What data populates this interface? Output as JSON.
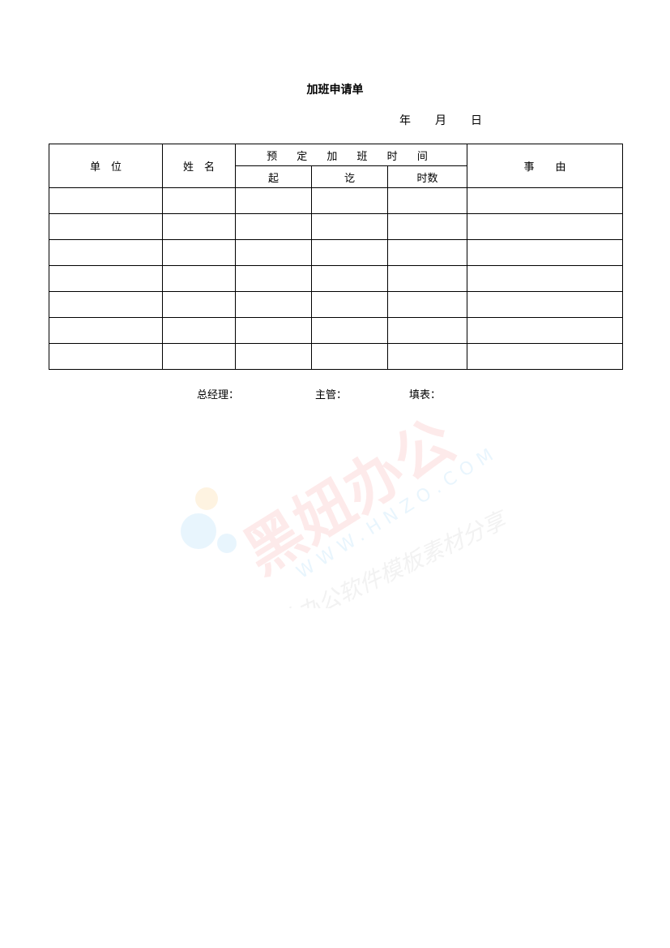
{
  "document": {
    "title": "加班申请单",
    "date": {
      "year": "年",
      "month": "月",
      "day": "日"
    },
    "table": {
      "headers": {
        "unit": "单　位",
        "name": "姓　名",
        "planned_time": "预 定 加 班 时 间",
        "start": "起",
        "end": "讫",
        "hours": "时数",
        "reason": "事　　由"
      },
      "rows": [
        [
          "",
          "",
          "",
          "",
          "",
          ""
        ],
        [
          "",
          "",
          "",
          "",
          "",
          ""
        ],
        [
          "",
          "",
          "",
          "",
          "",
          ""
        ],
        [
          "",
          "",
          "",
          "",
          "",
          ""
        ],
        [
          "",
          "",
          "",
          "",
          "",
          ""
        ],
        [
          "",
          "",
          "",
          "",
          "",
          ""
        ],
        [
          "",
          "",
          "",
          "",
          "",
          ""
        ]
      ]
    },
    "signatures": {
      "general_manager": "总经理：",
      "supervisor": "主管：",
      "filled_by": "填表："
    }
  },
  "watermark": {
    "brand": "黑妞办公",
    "url": "WWW.HNZO.COM",
    "slogan": "专业办公软件模板素材分享",
    "colors": {
      "red": "#f25a5a",
      "blue": "#5ab4f0",
      "orange": "#f7b24a"
    }
  }
}
